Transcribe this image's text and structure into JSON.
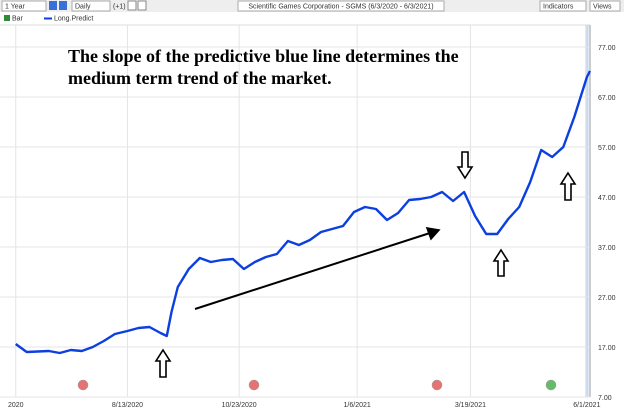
{
  "toolbar": {
    "period": "1 Year",
    "interval": "Daily",
    "offset": "(+1)",
    "title": "Scientific Games Corporation - SGMS (6/3/2020 - 6/3/2021)",
    "indicators": "Indicators",
    "views": "Views",
    "legend_bar": "Bar"
  },
  "chart_data": {
    "type": "line",
    "annotation": [
      "The slope of the predictive blue line determines the",
      "medium term trend of the market."
    ],
    "x": [
      "6/3/2020",
      "6/10/2020",
      "6/24/2020",
      "7/1/2020",
      "7/8/2020",
      "7/15/2020",
      "7/22/2020",
      "7/29/2020",
      "8/5/2020",
      "8/13/2020",
      "8/20/2020",
      "8/27/2020",
      "9/3/2020",
      "9/7/2020",
      "9/10/2020",
      "9/14/2020",
      "9/21/2020",
      "9/28/2020",
      "10/5/2020",
      "10/12/2020",
      "10/19/2020",
      "10/26/2020",
      "11/2/2020",
      "11/9/2020",
      "11/16/2020",
      "11/23/2020",
      "11/30/2020",
      "12/7/2020",
      "12/14/2020",
      "12/21/2020",
      "12/28/2020",
      "1/4/2021",
      "1/11/2021",
      "1/18/2021",
      "1/25/2021",
      "2/1/2021",
      "2/8/2021",
      "2/15/2021",
      "2/22/2021",
      "3/1/2021",
      "3/8/2021",
      "3/15/2021",
      "3/22/2021",
      "3/29/2021",
      "4/5/2021",
      "4/12/2021",
      "4/19/2021",
      "4/26/2021",
      "5/3/2021",
      "5/10/2021",
      "5/17/2021",
      "5/24/2021",
      "6/1/2021",
      "6/3/2021"
    ],
    "series": [
      {
        "name": "Long.Predict",
        "color": "#0b3fe0",
        "values": [
          17.6,
          16.0,
          16.2,
          15.8,
          16.4,
          16.2,
          17.0,
          18.2,
          19.6,
          20.2,
          20.8,
          21.0,
          19.8,
          19.2,
          24.0,
          29.0,
          32.6,
          34.8,
          34.0,
          34.4,
          34.6,
          32.6,
          34.0,
          35.0,
          35.6,
          38.2,
          37.4,
          38.4,
          40.0,
          40.6,
          41.2,
          44.0,
          45.0,
          44.6,
          42.4,
          43.8,
          46.4,
          46.6,
          47.0,
          48.0,
          46.2,
          48.0,
          43.2,
          39.6,
          39.6,
          42.6,
          45.0,
          50.0,
          56.4,
          55.0,
          57.0,
          63.0,
          71.0,
          72.2
        ]
      }
    ],
    "xlim": [
      "5/24/2020",
      "6/3/2021"
    ],
    "xticks": [
      {
        "value": "6/3/2020",
        "label": "2020"
      },
      "8/13/2020",
      "10/23/2020",
      "1/6/2021",
      "3/19/2021",
      "6/1/2021"
    ],
    "ylim": [
      7,
      77
    ],
    "yticks": [
      {
        "value": 7,
        "label": "7.00"
      },
      {
        "value": 17,
        "label": "17.00"
      },
      {
        "value": 27,
        "label": "27.00"
      },
      {
        "value": 37,
        "label": "37.00"
      },
      {
        "value": 47,
        "label": "47.00"
      },
      {
        "value": 57,
        "label": "57.00"
      },
      {
        "value": 67,
        "label": "67.00"
      },
      {
        "value": 77,
        "label": "77.00"
      }
    ],
    "grid": true
  }
}
